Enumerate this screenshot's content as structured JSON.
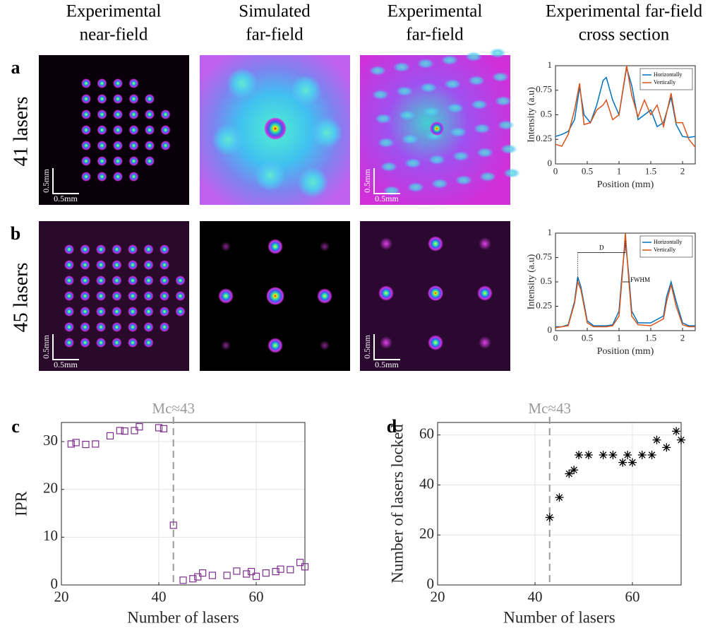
{
  "columns": [
    [
      "Experimental",
      "near-field"
    ],
    [
      "Simulated",
      "far-field"
    ],
    [
      "Experimental",
      "far-field"
    ],
    [
      "Experimental far-field",
      "cross section"
    ]
  ],
  "rows": [
    {
      "label": "a",
      "name": "41 lasers"
    },
    {
      "label": "b",
      "name": "45 lasers"
    }
  ],
  "scale_bar": "0.5mm",
  "chart_data": [
    {
      "type": "line",
      "x": [
        0,
        0.1,
        0.2,
        0.3,
        0.38,
        0.45,
        0.55,
        0.65,
        0.75,
        0.8,
        0.9,
        1.0,
        1.12,
        1.2,
        1.3,
        1.4,
        1.5,
        1.6,
        1.7,
        1.82,
        1.9,
        2.0,
        2.1,
        2.2
      ],
      "series": [
        {
          "name": "Horizontally",
          "color": "#0072bd",
          "values": [
            0.28,
            0.3,
            0.33,
            0.45,
            0.78,
            0.5,
            0.42,
            0.6,
            0.85,
            0.88,
            0.65,
            0.5,
            0.98,
            0.8,
            0.45,
            0.5,
            0.55,
            0.38,
            0.42,
            0.68,
            0.4,
            0.28,
            0.27,
            0.28
          ]
        },
        {
          "name": "Vertically",
          "color": "#d95319",
          "values": [
            0.2,
            0.18,
            0.3,
            0.55,
            0.82,
            0.4,
            0.42,
            0.55,
            0.6,
            0.65,
            0.45,
            0.5,
            1.0,
            0.7,
            0.48,
            0.65,
            0.5,
            0.6,
            0.38,
            0.72,
            0.42,
            0.42,
            0.25,
            0.17
          ]
        }
      ],
      "xlabel": "Position (mm)",
      "ylabel": "Intensity (a.u)",
      "xlim": [
        0,
        2.2
      ],
      "xticks": [
        0,
        0.5,
        1,
        1.5,
        2
      ],
      "ylim": [
        0,
        1
      ],
      "yticks": [
        0,
        0.25,
        0.5,
        0.75,
        1
      ],
      "legend": "upper right"
    },
    {
      "type": "line",
      "x": [
        0,
        0.1,
        0.2,
        0.3,
        0.35,
        0.4,
        0.5,
        0.6,
        0.7,
        0.8,
        0.9,
        1.0,
        1.05,
        1.1,
        1.15,
        1.2,
        1.3,
        1.5,
        1.7,
        1.75,
        1.82,
        1.9,
        2.0,
        2.1,
        2.2
      ],
      "series": [
        {
          "name": "Horizontally",
          "color": "#0072bd",
          "values": [
            0.04,
            0.04,
            0.06,
            0.3,
            0.55,
            0.45,
            0.1,
            0.05,
            0.05,
            0.05,
            0.06,
            0.2,
            0.6,
            0.92,
            0.6,
            0.2,
            0.08,
            0.08,
            0.15,
            0.35,
            0.5,
            0.3,
            0.08,
            0.05,
            0.05
          ]
        },
        {
          "name": "Vertically",
          "color": "#d95319",
          "values": [
            0.03,
            0.04,
            0.05,
            0.28,
            0.5,
            0.42,
            0.08,
            0.04,
            0.04,
            0.04,
            0.05,
            0.15,
            0.55,
            1.0,
            0.55,
            0.15,
            0.06,
            0.05,
            0.12,
            0.3,
            0.47,
            0.25,
            0.06,
            0.04,
            0.04
          ]
        }
      ],
      "xlabel": "Position (mm)",
      "ylabel": "Intensity (a.u)",
      "xlim": [
        0,
        2.2
      ],
      "xticks": [
        0,
        0.5,
        1,
        1.5,
        2
      ],
      "ylim": [
        0,
        1
      ],
      "yticks": [
        0,
        0.25,
        0.5,
        0.75,
        1
      ],
      "legend": "upper right",
      "annotations": [
        "D",
        "FWHM"
      ]
    },
    {
      "type": "scatter",
      "label": "c",
      "marker": "square",
      "color": "#7e2f8e",
      "x": [
        22,
        23,
        25,
        27,
        30,
        32,
        33,
        35,
        36,
        40,
        41,
        43,
        45,
        47,
        48,
        49,
        51,
        54,
        56,
        58,
        59,
        60,
        62,
        64,
        65,
        67,
        69,
        70
      ],
      "values": [
        29.5,
        29.8,
        29.4,
        29.5,
        31.2,
        32.3,
        32.2,
        32.3,
        33.1,
        32.9,
        32.7,
        12.5,
        1,
        1.3,
        1.7,
        2.5,
        2,
        2,
        2.9,
        2.3,
        2.8,
        1.8,
        2.5,
        2.8,
        3.3,
        3.2,
        4.7,
        3.8
      ],
      "xlabel": "Number of lasers",
      "ylabel": "IPR",
      "xlim": [
        20,
        70
      ],
      "xticks": [
        20,
        40,
        60
      ],
      "ylim": [
        0,
        34
      ],
      "yticks": [
        0,
        10,
        20,
        30
      ],
      "grid": true,
      "threshold": {
        "value": 43,
        "label": "Mc≈43"
      }
    },
    {
      "type": "scatter",
      "label": "d",
      "marker": "asterisk",
      "color": "#000000",
      "x": [
        43,
        45,
        47,
        48,
        49,
        51,
        54,
        56,
        58,
        59,
        60,
        62,
        64,
        65,
        67,
        69,
        70
      ],
      "values": [
        27,
        35,
        44.5,
        46,
        52,
        52,
        52,
        52,
        49,
        52,
        49,
        52,
        52,
        58,
        55,
        61.5,
        58
      ],
      "xlabel": "Number of lasers",
      "ylabel": "Number of lasers locked",
      "xlim": [
        20,
        70
      ],
      "xticks": [
        20,
        40,
        60
      ],
      "ylim": [
        0,
        65
      ],
      "yticks": [
        0,
        20,
        40,
        60
      ],
      "grid": true,
      "threshold": {
        "value": 43,
        "label": "Mc≈43"
      }
    }
  ]
}
